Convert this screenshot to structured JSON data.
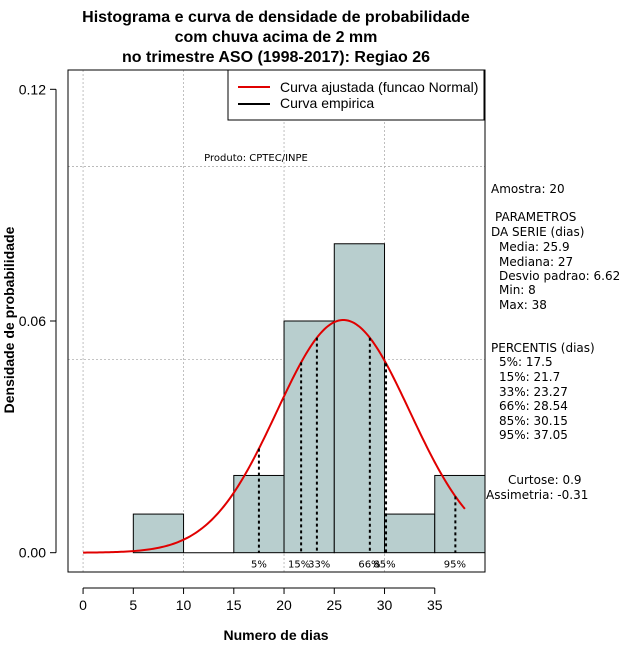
{
  "chart_data": {
    "type": "bar",
    "title_lines": [
      "Histograma e curva de densidade de probabilidade",
      "com chuva acima de 2 mm",
      "no trimestre ASO (1998-2017): Regiao 26"
    ],
    "xlabel": "Numero de dias",
    "ylabel": "Densidade de probabilidade",
    "xlim": [
      -1.5,
      40
    ],
    "ylim": [
      -0.005,
      0.125
    ],
    "x_ticks": [
      0,
      5,
      10,
      15,
      20,
      25,
      30,
      35
    ],
    "y_ticks": [
      0.0,
      0.06,
      0.12
    ],
    "y_tick_labels": [
      "0.00",
      "0.06",
      "0.12"
    ],
    "grid": true,
    "grid_x": [
      0,
      10,
      20,
      30
    ],
    "grid_y": [
      0.05,
      0.1
    ],
    "bins": [
      {
        "start": 5,
        "end": 10,
        "density": 0.01
      },
      {
        "start": 10,
        "end": 15,
        "density": 0.0
      },
      {
        "start": 15,
        "end": 20,
        "density": 0.02
      },
      {
        "start": 20,
        "end": 25,
        "density": 0.06
      },
      {
        "start": 25,
        "end": 30,
        "density": 0.08
      },
      {
        "start": 30,
        "end": 35,
        "density": 0.01
      },
      {
        "start": 35,
        "end": 40,
        "density": 0.02
      }
    ],
    "normal_fit": {
      "mean": 25.9,
      "sd": 6.62,
      "x_from": 0,
      "x_to": 38
    },
    "percentile_lines": [
      {
        "label": "5%",
        "value": 17.5
      },
      {
        "label": "15%",
        "value": 21.7
      },
      {
        "label": "33%",
        "value": 23.27
      },
      {
        "label": "66%",
        "value": 28.54
      },
      {
        "label": "85%",
        "value": 30.15
      },
      {
        "label": "95%",
        "value": 37.05
      }
    ],
    "percentile_labels": [
      {
        "text": "5%",
        "x": 17.5
      },
      {
        "text": "15%",
        "x": 21.5
      },
      {
        "text": "33%",
        "x": 23.5
      },
      {
        "text": "66%",
        "x": 28.5
      },
      {
        "text": "85%",
        "x": 30.0
      },
      {
        "text": "95%",
        "x": 37.0
      }
    ],
    "legend": [
      {
        "label": "Curva ajustada (funcao Normal)",
        "color": "#e00000"
      },
      {
        "label": "Curva empirica",
        "color": "#000000"
      }
    ],
    "product_label": "Produto: CPTEC/INPE",
    "stats_text": [
      "Amostra: 20",
      "PARAMETROS",
      "DA SERIE (dias)",
      "Media: 25.9",
      "Mediana: 27",
      "Desvio padrao: 6.62",
      "Min: 8",
      "Max: 38",
      "PERCENTIS (dias)",
      "5%: 17.5",
      "15%: 21.7",
      "33%: 23.27",
      "66%: 28.54",
      "85%: 30.15",
      "95%: 37.05",
      "Curtose: 0.9",
      "Assimetria: -0.31"
    ],
    "colors": {
      "bar_fill": "#b8cece",
      "bar_stroke": "#000000",
      "curve": "#e00000",
      "grid": "#b0b0b0"
    }
  }
}
